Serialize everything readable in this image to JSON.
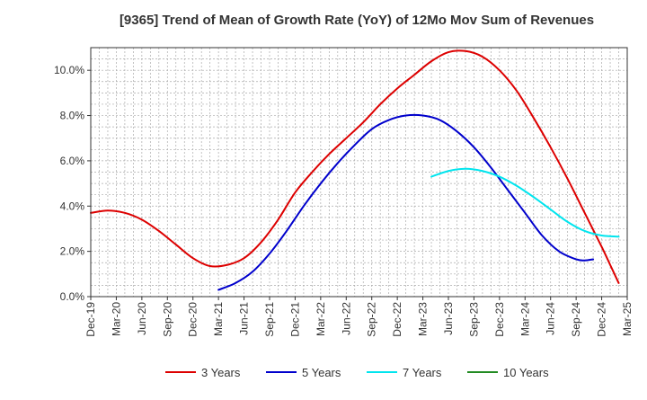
{
  "chart_data": {
    "type": "line",
    "title": "[9365]  Trend of Mean of Growth Rate (YoY) of 12Mo Mov Sum of Revenues",
    "xlabel": "",
    "ylabel": "",
    "y_unit": "%",
    "ylim": [
      0,
      11
    ],
    "y_ticks": [
      0,
      2,
      4,
      6,
      8,
      10
    ],
    "y_tick_labels": [
      "0.0%",
      "2.0%",
      "4.0%",
      "6.0%",
      "8.0%",
      "10.0%"
    ],
    "x_tick_labels": [
      "Dec-19",
      "Mar-20",
      "Jun-20",
      "Sep-20",
      "Dec-20",
      "Mar-21",
      "Jun-21",
      "Sep-21",
      "Dec-21",
      "Mar-22",
      "Jun-22",
      "Sep-22",
      "Dec-22",
      "Mar-23",
      "Jun-23",
      "Sep-23",
      "Dec-23",
      "Mar-24",
      "Jun-24",
      "Sep-24",
      "Dec-24",
      "Mar-25"
    ],
    "x_range_months": [
      0,
      63
    ],
    "grid": true,
    "legend_position": "bottom",
    "series": [
      {
        "name": "3 Years",
        "color": "#dd0000",
        "points": [
          [
            0,
            3.7
          ],
          [
            2,
            3.8
          ],
          [
            4,
            3.7
          ],
          [
            6,
            3.4
          ],
          [
            8,
            2.9
          ],
          [
            10,
            2.3
          ],
          [
            12,
            1.7
          ],
          [
            14,
            1.35
          ],
          [
            16,
            1.4
          ],
          [
            18,
            1.7
          ],
          [
            20,
            2.4
          ],
          [
            22,
            3.4
          ],
          [
            24,
            4.6
          ],
          [
            26,
            5.5
          ],
          [
            28,
            6.3
          ],
          [
            30,
            7.0
          ],
          [
            32,
            7.7
          ],
          [
            34,
            8.5
          ],
          [
            36,
            9.2
          ],
          [
            38,
            9.8
          ],
          [
            40,
            10.4
          ],
          [
            42,
            10.8
          ],
          [
            44,
            10.85
          ],
          [
            46,
            10.6
          ],
          [
            48,
            10.0
          ],
          [
            50,
            9.1
          ],
          [
            52,
            7.9
          ],
          [
            54,
            6.6
          ],
          [
            56,
            5.2
          ],
          [
            58,
            3.7
          ],
          [
            60,
            2.2
          ],
          [
            61,
            1.4
          ],
          [
            62,
            0.6
          ]
        ]
      },
      {
        "name": "5 Years",
        "color": "#0000cc",
        "points": [
          [
            15,
            0.3
          ],
          [
            17,
            0.6
          ],
          [
            19,
            1.1
          ],
          [
            21,
            1.9
          ],
          [
            23,
            2.9
          ],
          [
            25,
            4.0
          ],
          [
            27,
            5.0
          ],
          [
            29,
            5.9
          ],
          [
            31,
            6.7
          ],
          [
            33,
            7.4
          ],
          [
            35,
            7.8
          ],
          [
            37,
            8.0
          ],
          [
            39,
            8.0
          ],
          [
            41,
            7.8
          ],
          [
            43,
            7.3
          ],
          [
            45,
            6.6
          ],
          [
            47,
            5.7
          ],
          [
            49,
            4.7
          ],
          [
            51,
            3.7
          ],
          [
            53,
            2.7
          ],
          [
            55,
            2.0
          ],
          [
            57,
            1.65
          ],
          [
            58,
            1.6
          ],
          [
            59,
            1.65
          ]
        ]
      },
      {
        "name": "7 Years",
        "color": "#00e5ee",
        "points": [
          [
            40,
            5.3
          ],
          [
            42,
            5.55
          ],
          [
            44,
            5.65
          ],
          [
            46,
            5.55
          ],
          [
            48,
            5.3
          ],
          [
            50,
            4.9
          ],
          [
            52,
            4.4
          ],
          [
            54,
            3.85
          ],
          [
            56,
            3.3
          ],
          [
            58,
            2.9
          ],
          [
            60,
            2.7
          ],
          [
            62,
            2.65
          ]
        ]
      },
      {
        "name": "10 Years",
        "color": "#228b22",
        "points": []
      }
    ]
  }
}
